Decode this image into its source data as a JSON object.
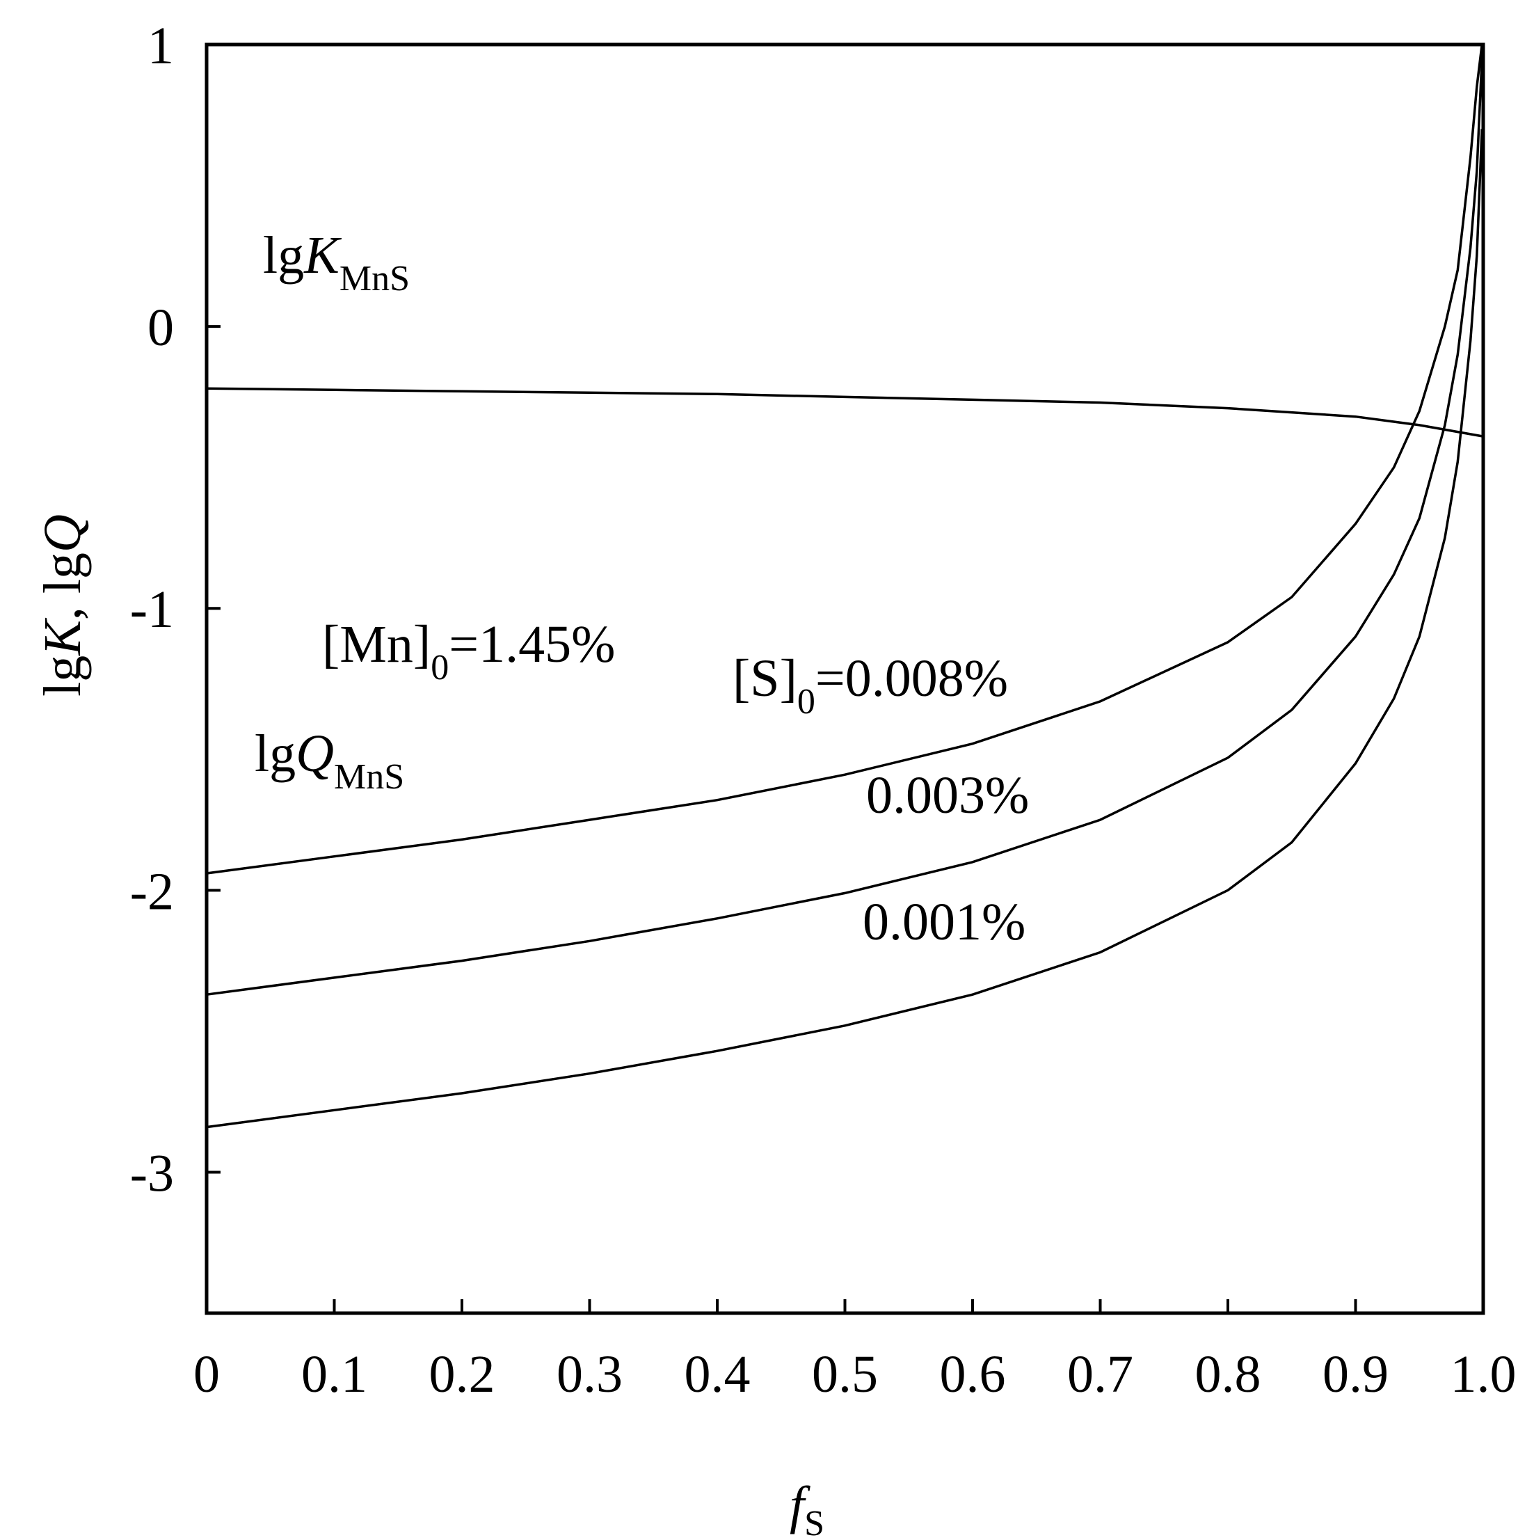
{
  "chart_data": {
    "type": "line",
    "title": "",
    "xlabel": {
      "main": "f",
      "sub": "S"
    },
    "ylabel": {
      "part1_main": "lg",
      "part1_var": "K",
      "sep": ", ",
      "part2_main": "lg",
      "part2_var": "Q"
    },
    "xlim": [
      0,
      1.0
    ],
    "ylim": [
      -3.5,
      1
    ],
    "x_ticks": [
      0,
      0.1,
      0.2,
      0.3,
      0.4,
      0.5,
      0.6,
      0.7,
      0.8,
      0.9,
      1.0
    ],
    "x_tick_labels": [
      "0",
      "0.1",
      "0.2",
      "0.3",
      "0.4",
      "0.5",
      "0.6",
      "0.7",
      "0.8",
      "0.9",
      "1.0"
    ],
    "y_ticks": [
      1,
      0,
      -1,
      -2,
      -3
    ],
    "y_tick_labels": [
      "1",
      "0",
      "-1",
      "-2",
      "-3"
    ],
    "grid": false,
    "x": [
      0,
      0.1,
      0.2,
      0.3,
      0.4,
      0.5,
      0.6,
      0.7,
      0.8,
      0.85,
      0.9,
      0.93,
      0.95,
      0.97,
      0.98,
      0.99,
      0.995,
      0.999
    ],
    "series": [
      {
        "name": "lgK_MnS",
        "x": [
          0,
          0.1,
          0.2,
          0.3,
          0.4,
          0.5,
          0.6,
          0.7,
          0.8,
          0.9,
          0.95,
          1.0
        ],
        "values": [
          -0.22,
          -0.225,
          -0.23,
          -0.235,
          -0.24,
          -0.25,
          -0.26,
          -0.27,
          -0.29,
          -0.32,
          -0.35,
          -0.39
        ]
      },
      {
        "name": "[S]0=0.008%",
        "values": [
          -1.94,
          -1.88,
          -1.82,
          -1.75,
          -1.68,
          -1.59,
          -1.48,
          -1.33,
          -1.12,
          -0.96,
          -0.7,
          -0.5,
          -0.3,
          0.0,
          0.2,
          0.6,
          0.85,
          1.0
        ]
      },
      {
        "name": "0.003%",
        "values": [
          -2.37,
          -2.31,
          -2.25,
          -2.18,
          -2.1,
          -2.01,
          -1.9,
          -1.75,
          -1.53,
          -1.36,
          -1.1,
          -0.88,
          -0.68,
          -0.35,
          -0.1,
          0.28,
          0.55,
          0.95
        ]
      },
      {
        "name": "0.001%",
        "values": [
          -2.84,
          -2.78,
          -2.72,
          -2.65,
          -2.57,
          -2.48,
          -2.37,
          -2.22,
          -2.0,
          -1.83,
          -1.55,
          -1.32,
          -1.1,
          -0.75,
          -0.48,
          -0.05,
          0.25,
          0.7
        ]
      }
    ],
    "annotations": {
      "lgK": {
        "main": "lg",
        "var": "K",
        "sub": "MnS"
      },
      "mn0": {
        "pre": "[Mn]",
        "sub": "0",
        "post": "=1.45%"
      },
      "s0": {
        "pre": "[S]",
        "sub": "0",
        "post": "=0.008%"
      },
      "lgQ": {
        "main": "lg",
        "var": "Q",
        "sub": "MnS"
      },
      "s003": "0.003%",
      "s001": "0.001%"
    }
  }
}
